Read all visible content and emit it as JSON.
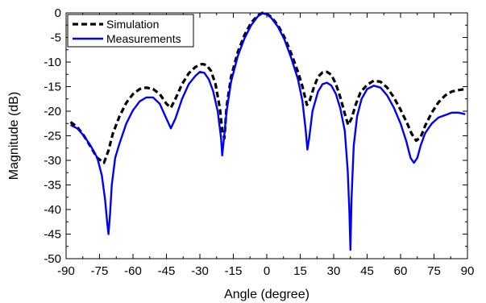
{
  "chart_data": {
    "type": "line",
    "title": "",
    "xlabel": "Angle (degree)",
    "ylabel": "Magnitude (dB)",
    "xlim": [
      -90,
      90
    ],
    "ylim": [
      -50,
      0
    ],
    "xticks": [
      -90,
      -75,
      -60,
      -45,
      -30,
      -15,
      0,
      15,
      30,
      45,
      60,
      75,
      90
    ],
    "yticks": [
      0,
      -5,
      -10,
      -15,
      -20,
      -25,
      -30,
      -35,
      -40,
      -45,
      -50
    ],
    "grid": false,
    "legend_position": "top-left",
    "series": [
      {
        "name": "Simulation",
        "color": "#000000",
        "style": "dashed",
        "points": [
          [
            -88,
            -22.2
          ],
          [
            -85,
            -23.2
          ],
          [
            -82,
            -25
          ],
          [
            -79,
            -27.2
          ],
          [
            -76,
            -29.5
          ],
          [
            -73,
            -30.5
          ],
          [
            -71,
            -28
          ],
          [
            -69,
            -24.5
          ],
          [
            -66,
            -21
          ],
          [
            -63,
            -18.3
          ],
          [
            -60,
            -16.5
          ],
          [
            -57,
            -15.5
          ],
          [
            -54,
            -15.2
          ],
          [
            -51,
            -15.5
          ],
          [
            -48,
            -16.5
          ],
          [
            -45,
            -18.5
          ],
          [
            -43,
            -19.3
          ],
          [
            -41,
            -17.5
          ],
          [
            -38,
            -14.5
          ],
          [
            -35,
            -12.3
          ],
          [
            -32,
            -11
          ],
          [
            -29,
            -10.4
          ],
          [
            -27,
            -10.6
          ],
          [
            -25,
            -11.8
          ],
          [
            -23,
            -14.5
          ],
          [
            -21,
            -19.5
          ],
          [
            -20,
            -24
          ],
          [
            -19,
            -25.5
          ],
          [
            -18,
            -19
          ],
          [
            -16,
            -13
          ],
          [
            -13,
            -8
          ],
          [
            -10,
            -4.5
          ],
          [
            -7,
            -2
          ],
          [
            -4,
            -0.5
          ],
          [
            -2,
            0
          ],
          [
            0,
            -0.2
          ],
          [
            2,
            -0.8
          ],
          [
            5,
            -2.5
          ],
          [
            8,
            -5
          ],
          [
            11,
            -8.3
          ],
          [
            14,
            -12
          ],
          [
            16,
            -15
          ],
          [
            18,
            -18.7
          ],
          [
            19,
            -18.2
          ],
          [
            21,
            -15.3
          ],
          [
            23,
            -13
          ],
          [
            25,
            -12.1
          ],
          [
            27,
            -12
          ],
          [
            29,
            -12.6
          ],
          [
            31,
            -14.5
          ],
          [
            33,
            -17.2
          ],
          [
            35,
            -20.5
          ],
          [
            36.5,
            -22.8
          ],
          [
            38,
            -21.5
          ],
          [
            40,
            -18.5
          ],
          [
            42,
            -16.2
          ],
          [
            45,
            -14.6
          ],
          [
            48,
            -13.8
          ],
          [
            51,
            -14
          ],
          [
            54,
            -15.2
          ],
          [
            57,
            -17.2
          ],
          [
            60,
            -19.7
          ],
          [
            63,
            -22.5
          ],
          [
            65,
            -24.6
          ],
          [
            67,
            -26
          ],
          [
            69,
            -25.3
          ],
          [
            71,
            -23
          ],
          [
            74,
            -20.3
          ],
          [
            77,
            -18.2
          ],
          [
            80,
            -16.8
          ],
          [
            83,
            -16
          ],
          [
            86,
            -15.7
          ],
          [
            89,
            -15.5
          ]
        ]
      },
      {
        "name": "Measurements",
        "color": "#0000ff",
        "style": "solid",
        "points": [
          [
            -88,
            -22.8
          ],
          [
            -85,
            -23.5
          ],
          [
            -82,
            -25
          ],
          [
            -79,
            -27
          ],
          [
            -76,
            -29.5
          ],
          [
            -74,
            -33
          ],
          [
            -72.5,
            -38
          ],
          [
            -71.5,
            -43
          ],
          [
            -71,
            -45
          ],
          [
            -70.3,
            -41
          ],
          [
            -69.5,
            -35
          ],
          [
            -68,
            -29.5
          ],
          [
            -66,
            -26.5
          ],
          [
            -63,
            -22.5
          ],
          [
            -60,
            -19.8
          ],
          [
            -57,
            -18
          ],
          [
            -54,
            -17.2
          ],
          [
            -51,
            -17.2
          ],
          [
            -48,
            -18.5
          ],
          [
            -45,
            -21.5
          ],
          [
            -43,
            -23.5
          ],
          [
            -41,
            -21.5
          ],
          [
            -38,
            -17.5
          ],
          [
            -35,
            -14.5
          ],
          [
            -32,
            -12.8
          ],
          [
            -30,
            -12
          ],
          [
            -28,
            -12.2
          ],
          [
            -26,
            -13.5
          ],
          [
            -24,
            -16
          ],
          [
            -22,
            -20
          ],
          [
            -20.5,
            -25.5
          ],
          [
            -20,
            -29
          ],
          [
            -19.3,
            -26
          ],
          [
            -18,
            -20
          ],
          [
            -16,
            -14
          ],
          [
            -13,
            -8.8
          ],
          [
            -10,
            -5.2
          ],
          [
            -7,
            -2.5
          ],
          [
            -4,
            -0.7
          ],
          [
            -2,
            -0.1
          ],
          [
            0,
            -0.3
          ],
          [
            2,
            -1
          ],
          [
            5,
            -2.8
          ],
          [
            8,
            -5.5
          ],
          [
            11,
            -9.2
          ],
          [
            14,
            -13.5
          ],
          [
            16,
            -18
          ],
          [
            17.5,
            -24
          ],
          [
            18.2,
            -27.8
          ],
          [
            19,
            -25.5
          ],
          [
            20.5,
            -20
          ],
          [
            23,
            -16
          ],
          [
            25,
            -14.5
          ],
          [
            27,
            -14.2
          ],
          [
            29,
            -14.8
          ],
          [
            31,
            -16.5
          ],
          [
            33,
            -19.5
          ],
          [
            35,
            -24
          ],
          [
            36.3,
            -32
          ],
          [
            37,
            -40
          ],
          [
            37.5,
            -48.2
          ],
          [
            38,
            -38
          ],
          [
            39,
            -27
          ],
          [
            40.5,
            -21
          ],
          [
            42.5,
            -17.5
          ],
          [
            45,
            -15.5
          ],
          [
            48,
            -14.8
          ],
          [
            51,
            -15.2
          ],
          [
            54,
            -16.8
          ],
          [
            57,
            -19.3
          ],
          [
            60,
            -22.5
          ],
          [
            62.5,
            -26
          ],
          [
            64.5,
            -29.5
          ],
          [
            66,
            -30.5
          ],
          [
            67.5,
            -29.5
          ],
          [
            69,
            -27
          ],
          [
            71,
            -24.5
          ],
          [
            74,
            -22.5
          ],
          [
            77,
            -21.3
          ],
          [
            80,
            -20.8
          ],
          [
            83,
            -20.3
          ],
          [
            86,
            -20.3
          ],
          [
            89,
            -20.6
          ]
        ]
      }
    ]
  }
}
